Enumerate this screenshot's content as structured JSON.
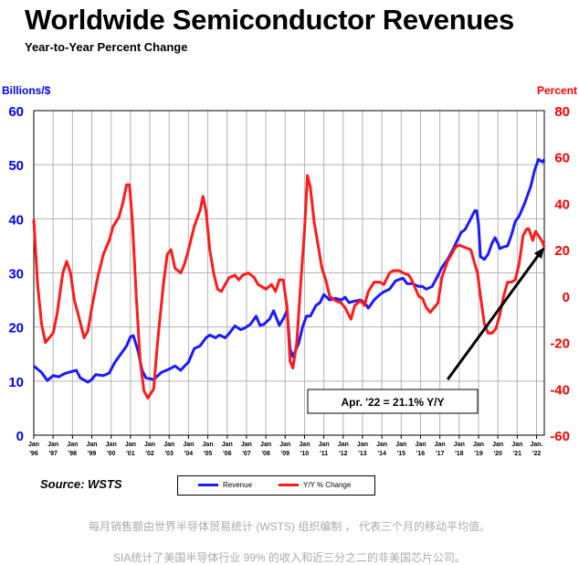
{
  "title": "Worldwide Semiconductor Revenues",
  "subtitle": "Year-to-Year Percent Change",
  "source": "Source: WSTS",
  "captions": {
    "line1": "每月销售额由世界半导体贸易统计 (WSTS) 组织编制 ， 代表三个月的移动平均值。",
    "line2": "SIA统计了美国半导体行业 99% 的收入和近三分之二的非美国芯片公司。"
  },
  "chart_data": {
    "type": "line",
    "title": "Worldwide Semiconductor Revenues",
    "subtitle": "Year-to-Year Percent Change",
    "left_axis": {
      "label": "Billions/$",
      "range": [
        0,
        60
      ],
      "ticks": [
        "0",
        "10",
        "20",
        "30",
        "40",
        "50",
        "60"
      ],
      "color": "#0000ff"
    },
    "right_axis": {
      "label": "Percent",
      "range": [
        -60,
        80
      ],
      "ticks": [
        "-60",
        "-40",
        "-20",
        "0",
        "20",
        "40",
        "60",
        "80"
      ],
      "color": "#ff0000"
    },
    "x_range": [
      1996,
      2022.4
    ],
    "x_ticks": [
      {
        "top": "Jan",
        "bottom": "'96"
      },
      {
        "top": "Jan",
        "bottom": "'97"
      },
      {
        "top": "Jan",
        "bottom": "'98"
      },
      {
        "top": "Jan",
        "bottom": "'99"
      },
      {
        "top": "Jan",
        "bottom": "'00"
      },
      {
        "top": "Jan",
        "bottom": "'01"
      },
      {
        "top": "Jan",
        "bottom": "'02"
      },
      {
        "top": "Jan",
        "bottom": "'03"
      },
      {
        "top": "Jan",
        "bottom": "'04"
      },
      {
        "top": "Jan",
        "bottom": "'05"
      },
      {
        "top": "Jan",
        "bottom": "'06"
      },
      {
        "top": "Jan",
        "bottom": "'07"
      },
      {
        "top": "Jan",
        "bottom": "'08"
      },
      {
        "top": "Jan",
        "bottom": "'09"
      },
      {
        "top": "Jan",
        "bottom": "'10"
      },
      {
        "top": "Jan",
        "bottom": "'11"
      },
      {
        "top": "Jan",
        "bottom": "'12"
      },
      {
        "top": "Jan",
        "bottom": "'13"
      },
      {
        "top": "Jan",
        "bottom": "'14"
      },
      {
        "top": "Jan",
        "bottom": "'15"
      },
      {
        "top": "Jan",
        "bottom": "'16"
      },
      {
        "top": "Jan",
        "bottom": "'17"
      },
      {
        "top": "Jan",
        "bottom": "'18"
      },
      {
        "top": "Jan",
        "bottom": "'19"
      },
      {
        "top": "Jan",
        "bottom": "'20"
      },
      {
        "top": "Jan",
        "bottom": "'21"
      },
      {
        "top": "Jan.",
        "bottom": "'22"
      }
    ],
    "grid": true,
    "series": [
      {
        "name": "Revenue",
        "axis": "left",
        "color": "#1a1aff",
        "points": [
          [
            1996,
            12.8
          ],
          [
            1996.4,
            11.6
          ],
          [
            1996.7,
            10.1
          ],
          [
            1997,
            11
          ],
          [
            1997.3,
            10.8
          ],
          [
            1997.6,
            11.4
          ],
          [
            1998,
            11.8
          ],
          [
            1998.2,
            12
          ],
          [
            1998.4,
            10.6
          ],
          [
            1998.8,
            9.8
          ],
          [
            1999,
            10.3
          ],
          [
            1999.2,
            11.2
          ],
          [
            1999.6,
            11
          ],
          [
            1999.9,
            11.5
          ],
          [
            2000.2,
            13.5
          ],
          [
            2000.5,
            15
          ],
          [
            2000.8,
            16.5
          ],
          [
            2001,
            18.2
          ],
          [
            2001.15,
            18.4
          ],
          [
            2001.4,
            15.5
          ],
          [
            2001.6,
            12
          ],
          [
            2001.8,
            10.6
          ],
          [
            2002.2,
            10.3
          ],
          [
            2002.6,
            11.6
          ],
          [
            2003,
            12.2
          ],
          [
            2003.3,
            12.8
          ],
          [
            2003.6,
            12
          ],
          [
            2003.8,
            12.8
          ],
          [
            2004,
            13.5
          ],
          [
            2004.3,
            16
          ],
          [
            2004.6,
            16.5
          ],
          [
            2004.9,
            18
          ],
          [
            2005.1,
            18.5
          ],
          [
            2005.4,
            18
          ],
          [
            2005.6,
            18.5
          ],
          [
            2005.9,
            18
          ],
          [
            2006.1,
            18.8
          ],
          [
            2006.4,
            20.2
          ],
          [
            2006.7,
            19.5
          ],
          [
            2006.9,
            19.8
          ],
          [
            2007.2,
            20.5
          ],
          [
            2007.5,
            22
          ],
          [
            2007.7,
            20.3
          ],
          [
            2007.9,
            20.5
          ],
          [
            2008.2,
            21.5
          ],
          [
            2008.4,
            23
          ],
          [
            2008.7,
            20.3
          ],
          [
            2008.9,
            21.5
          ],
          [
            2009.1,
            23
          ],
          [
            2009.25,
            16
          ],
          [
            2009.4,
            14.5
          ],
          [
            2009.7,
            17
          ],
          [
            2009.9,
            20
          ],
          [
            2010.1,
            22
          ],
          [
            2010.3,
            22
          ],
          [
            2010.6,
            24
          ],
          [
            2010.8,
            24.5
          ],
          [
            2011,
            26
          ],
          [
            2011.3,
            25
          ],
          [
            2011.6,
            25.3
          ],
          [
            2011.9,
            25
          ],
          [
            2012.1,
            25.5
          ],
          [
            2012.3,
            24.5
          ],
          [
            2012.6,
            24.8
          ],
          [
            2012.9,
            25
          ],
          [
            2013.1,
            24.5
          ],
          [
            2013.3,
            23.5
          ],
          [
            2013.6,
            25
          ],
          [
            2013.9,
            26
          ],
          [
            2014.1,
            26.5
          ],
          [
            2014.4,
            27
          ],
          [
            2014.7,
            28.5
          ],
          [
            2014.9,
            28.8
          ],
          [
            2015.1,
            29
          ],
          [
            2015.3,
            28
          ],
          [
            2015.6,
            28
          ],
          [
            2015.9,
            27.5
          ],
          [
            2016.1,
            27.5
          ],
          [
            2016.3,
            27
          ],
          [
            2016.6,
            27.5
          ],
          [
            2016.9,
            29.5
          ],
          [
            2017.1,
            31
          ],
          [
            2017.4,
            32.5
          ],
          [
            2017.7,
            34.5
          ],
          [
            2017.9,
            36
          ],
          [
            2018.1,
            37.5
          ],
          [
            2018.3,
            38
          ],
          [
            2018.6,
            40
          ],
          [
            2018.8,
            41.5
          ],
          [
            2018.9,
            41.5
          ],
          [
            2019,
            39
          ],
          [
            2019.1,
            33
          ],
          [
            2019.3,
            32.5
          ],
          [
            2019.5,
            33.5
          ],
          [
            2019.7,
            35.5
          ],
          [
            2019.85,
            36.5
          ],
          [
            2020,
            35.5
          ],
          [
            2020.1,
            34.5
          ],
          [
            2020.3,
            34.8
          ],
          [
            2020.5,
            35
          ],
          [
            2020.7,
            37
          ],
          [
            2020.9,
            39.5
          ],
          [
            2021.1,
            40.5
          ],
          [
            2021.4,
            43
          ],
          [
            2021.7,
            46
          ],
          [
            2021.9,
            49
          ],
          [
            2022.1,
            51
          ],
          [
            2022.3,
            50.5
          ],
          [
            2022.4,
            51
          ]
        ]
      },
      {
        "name": "Y/Y % Change",
        "axis": "right",
        "color": "#ff1a1a",
        "points": [
          [
            1996,
            33
          ],
          [
            1996.2,
            5
          ],
          [
            1996.4,
            -12
          ],
          [
            1996.6,
            -20
          ],
          [
            1996.8,
            -18
          ],
          [
            1997,
            -16
          ],
          [
            1997.2,
            -8
          ],
          [
            1997.5,
            10
          ],
          [
            1997.7,
            15
          ],
          [
            1997.9,
            10
          ],
          [
            1998.1,
            -2
          ],
          [
            1998.3,
            -8
          ],
          [
            1998.6,
            -18
          ],
          [
            1998.8,
            -15
          ],
          [
            1999,
            -5
          ],
          [
            1999.3,
            8
          ],
          [
            1999.6,
            18
          ],
          [
            1999.9,
            24
          ],
          [
            2000.1,
            30
          ],
          [
            2000.4,
            34
          ],
          [
            2000.6,
            40
          ],
          [
            2000.8,
            48
          ],
          [
            2000.95,
            48
          ],
          [
            2001.1,
            32
          ],
          [
            2001.3,
            0
          ],
          [
            2001.5,
            -28
          ],
          [
            2001.7,
            -41
          ],
          [
            2001.9,
            -44
          ],
          [
            2002.2,
            -40
          ],
          [
            2002.4,
            -20
          ],
          [
            2002.7,
            5
          ],
          [
            2002.9,
            18
          ],
          [
            2003.1,
            20
          ],
          [
            2003.3,
            12
          ],
          [
            2003.6,
            10
          ],
          [
            2003.8,
            14
          ],
          [
            2004,
            20
          ],
          [
            2004.3,
            30
          ],
          [
            2004.6,
            37
          ],
          [
            2004.75,
            43
          ],
          [
            2004.9,
            37
          ],
          [
            2005.1,
            20
          ],
          [
            2005.3,
            10
          ],
          [
            2005.5,
            3
          ],
          [
            2005.7,
            2
          ],
          [
            2005.9,
            5
          ],
          [
            2006.1,
            8
          ],
          [
            2006.4,
            9
          ],
          [
            2006.6,
            7
          ],
          [
            2006.8,
            9
          ],
          [
            2007.1,
            10
          ],
          [
            2007.4,
            8
          ],
          [
            2007.6,
            5
          ],
          [
            2007.8,
            4
          ],
          [
            2008,
            3
          ],
          [
            2008.3,
            5
          ],
          [
            2008.5,
            2
          ],
          [
            2008.7,
            7
          ],
          [
            2008.9,
            7
          ],
          [
            2009.1,
            -5
          ],
          [
            2009.25,
            -28
          ],
          [
            2009.4,
            -31
          ],
          [
            2009.6,
            -20
          ],
          [
            2009.8,
            5
          ],
          [
            2010.0,
            28
          ],
          [
            2010.15,
            52
          ],
          [
            2010.3,
            47
          ],
          [
            2010.5,
            32
          ],
          [
            2010.7,
            22
          ],
          [
            2010.9,
            12
          ],
          [
            2011.1,
            7
          ],
          [
            2011.3,
            0
          ],
          [
            2011.6,
            -2
          ],
          [
            2011.9,
            -3
          ],
          [
            2012.1,
            -5
          ],
          [
            2012.4,
            -10
          ],
          [
            2012.6,
            -4
          ],
          [
            2012.9,
            -2
          ],
          [
            2013.1,
            -4
          ],
          [
            2013.3,
            2
          ],
          [
            2013.6,
            6
          ],
          [
            2013.9,
            6
          ],
          [
            2014.1,
            5
          ],
          [
            2014.4,
            10
          ],
          [
            2014.6,
            11
          ],
          [
            2014.9,
            11
          ],
          [
            2015.1,
            10
          ],
          [
            2015.4,
            9
          ],
          [
            2015.6,
            6
          ],
          [
            2015.9,
            0
          ],
          [
            2016.1,
            -1
          ],
          [
            2016.3,
            -5
          ],
          [
            2016.5,
            -7
          ],
          [
            2016.7,
            -5
          ],
          [
            2016.9,
            -3
          ],
          [
            2017.1,
            8
          ],
          [
            2017.4,
            15
          ],
          [
            2017.6,
            18
          ],
          [
            2017.8,
            21
          ],
          [
            2018.0,
            22
          ],
          [
            2018.3,
            21
          ],
          [
            2018.6,
            20
          ],
          [
            2018.8,
            14
          ],
          [
            2018.95,
            10
          ],
          [
            2019.1,
            0
          ],
          [
            2019.3,
            -12
          ],
          [
            2019.5,
            -16
          ],
          [
            2019.7,
            -16
          ],
          [
            2019.9,
            -14
          ],
          [
            2020.1,
            -8
          ],
          [
            2020.3,
            0
          ],
          [
            2020.5,
            6
          ],
          [
            2020.7,
            6
          ],
          [
            2020.9,
            7
          ],
          [
            2021.1,
            14
          ],
          [
            2021.3,
            26
          ],
          [
            2021.5,
            29
          ],
          [
            2021.6,
            29
          ],
          [
            2021.8,
            24
          ],
          [
            2021.95,
            28
          ],
          [
            2022.1,
            26
          ],
          [
            2022.3,
            23.5
          ],
          [
            2022.4,
            21.1
          ]
        ]
      }
    ],
    "legend": {
      "entries": [
        "Revenue",
        "Y/Y % Change"
      ],
      "placement": "bottom-center"
    },
    "annotation": {
      "text": "Apr. '22 = 21.1% Y/Y",
      "arrow_from": [
        2017.4,
        -36
      ],
      "arrow_to": [
        2022.4,
        21.1
      ]
    }
  }
}
